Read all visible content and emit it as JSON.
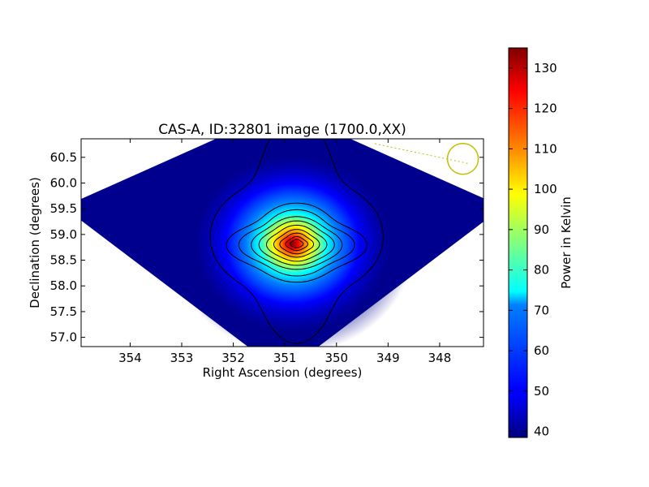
{
  "chart_data": {
    "type": "heatmap",
    "title": "CAS-A, ID:32801 image (1700.0,XX)",
    "xlabel": "Right Ascension (degrees)",
    "ylabel": "Declination (degrees)",
    "xlim": [
      354.95,
      347.15
    ],
    "ylim": [
      56.82,
      60.86
    ],
    "x_ticks": [
      354,
      353,
      352,
      351,
      350,
      349,
      348
    ],
    "y_ticks": [
      57.0,
      57.5,
      58.0,
      58.5,
      59.0,
      59.5,
      60.0,
      60.5
    ],
    "x_tick_labels": [
      "354",
      "353",
      "352",
      "351",
      "350",
      "349",
      "348"
    ],
    "y_tick_labels": [
      "57.0",
      "57.5",
      "58.0",
      "58.5",
      "59.0",
      "59.5",
      "60.0",
      "60.5"
    ],
    "colorbar": {
      "label": "Power in Kelvin",
      "min": 38.5,
      "max": 135,
      "ticks": [
        40,
        50,
        60,
        70,
        80,
        90,
        100,
        110,
        120,
        130
      ],
      "tick_labels": [
        "40",
        "50",
        "60",
        "70",
        "80",
        "90",
        "100",
        "110",
        "120",
        "130"
      ],
      "colormap": "jet"
    },
    "source": {
      "ra": 350.85,
      "dec": 58.82,
      "peak": 135,
      "background": 38.5
    },
    "contour_levels": [
      45,
      55,
      65,
      75,
      85,
      95,
      105,
      115,
      125,
      132
    ],
    "coverage": "diamond",
    "annotation": {
      "shape": "circle",
      "color": "#bfbf00",
      "ra": 347.55,
      "dec": 60.47
    },
    "grid": false
  }
}
